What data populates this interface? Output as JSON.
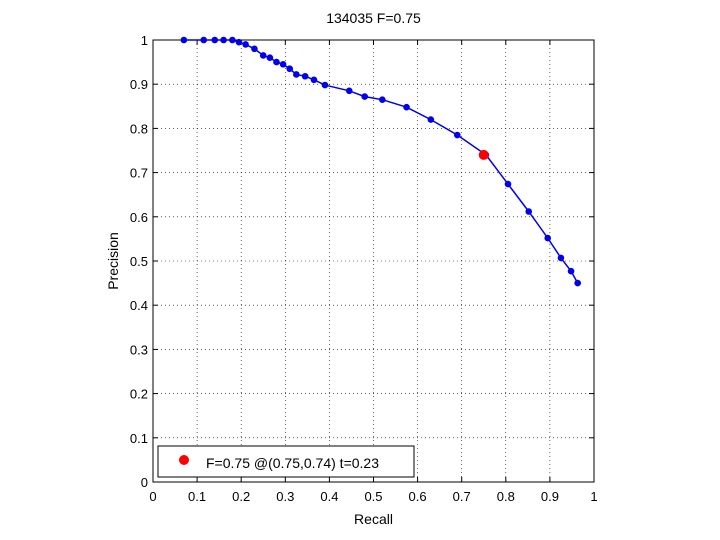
{
  "chart_data": {
    "type": "line",
    "title": "134035 F=0.75",
    "xlabel": "Recall",
    "ylabel": "Precision",
    "xlim": [
      0,
      1
    ],
    "ylim": [
      0,
      1
    ],
    "xticks": [
      0,
      0.1,
      0.2,
      0.3,
      0.4,
      0.5,
      0.6,
      0.7,
      0.8,
      0.9,
      1
    ],
    "yticks": [
      0,
      0.1,
      0.2,
      0.3,
      0.4,
      0.5,
      0.6,
      0.7,
      0.8,
      0.9,
      1
    ],
    "xtick_labels": [
      "0",
      "0.1",
      "0.2",
      "0.3",
      "0.4",
      "0.5",
      "0.6",
      "0.7",
      "0.8",
      "0.9",
      "1"
    ],
    "ytick_labels": [
      "0",
      "0.1",
      "0.2",
      "0.3",
      "0.4",
      "0.5",
      "0.6",
      "0.7",
      "0.8",
      "0.9",
      "1"
    ],
    "grid": true,
    "legend_position": "bottom-left",
    "series": [
      {
        "color": "#0000ee",
        "x": [
          0.07,
          0.115,
          0.14,
          0.16,
          0.18,
          0.195,
          0.21,
          0.23,
          0.25,
          0.265,
          0.28,
          0.295,
          0.31,
          0.325,
          0.345,
          0.365,
          0.39,
          0.445,
          0.48,
          0.52,
          0.575,
          0.63,
          0.69,
          0.755,
          0.805,
          0.852,
          0.895,
          0.925,
          0.948,
          0.963
        ],
        "y": [
          1.0,
          1.0,
          1.0,
          1.0,
          1.0,
          0.995,
          0.99,
          0.98,
          0.965,
          0.96,
          0.95,
          0.945,
          0.935,
          0.922,
          0.918,
          0.91,
          0.898,
          0.885,
          0.872,
          0.865,
          0.848,
          0.82,
          0.785,
          0.74,
          0.674,
          0.612,
          0.552,
          0.507,
          0.477,
          0.45
        ]
      }
    ],
    "highlight": {
      "x": 0.75,
      "y": 0.74,
      "color": "#ff0000",
      "label": "F=0.75 @(0.75,0.74) t=0.23"
    }
  }
}
